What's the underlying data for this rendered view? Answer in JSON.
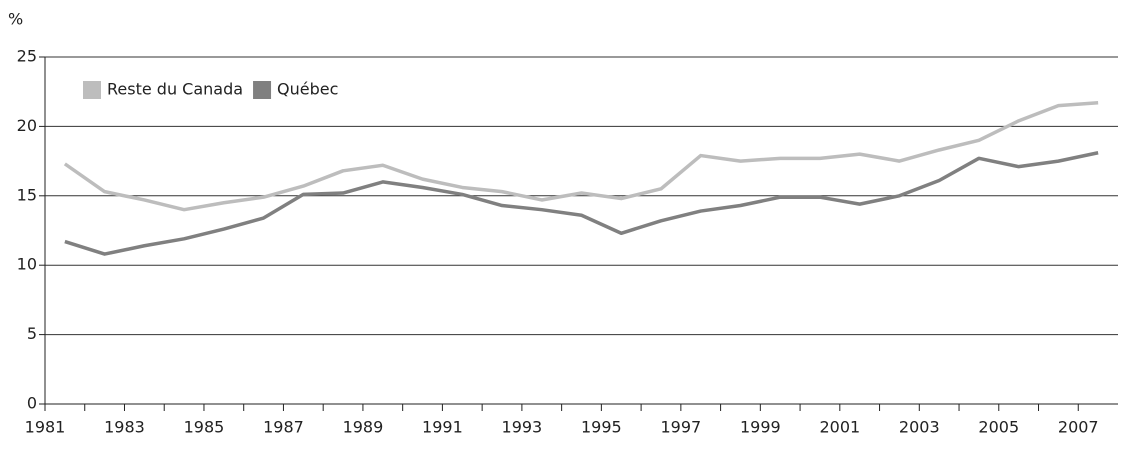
{
  "chart_data": {
    "type": "line",
    "y_label": "%",
    "categories": [
      "1981",
      null,
      "1983",
      null,
      "1985",
      null,
      "1987",
      null,
      "1989",
      null,
      "1991",
      null,
      "1993",
      null,
      "1995",
      null,
      "1997",
      null,
      "1999",
      null,
      "2001",
      null,
      "2003",
      null,
      "2005",
      null,
      "2007"
    ],
    "series": [
      {
        "name": "Reste du Canada",
        "color": "#bdbdbd",
        "values": [
          17.3,
          15.3,
          14.7,
          14.0,
          14.5,
          14.9,
          15.7,
          16.8,
          17.2,
          16.2,
          15.6,
          15.3,
          14.7,
          15.2,
          14.8,
          15.5,
          17.9,
          17.5,
          17.7,
          17.7,
          18.0,
          17.5,
          18.3,
          19.0,
          20.4,
          21.5,
          21.7
        ]
      },
      {
        "name": "Québec",
        "color": "#808080",
        "values": [
          11.7,
          10.8,
          11.4,
          11.9,
          12.6,
          13.4,
          15.1,
          15.2,
          16.0,
          15.6,
          15.1,
          14.3,
          14.0,
          13.6,
          12.3,
          13.2,
          13.9,
          14.3,
          14.9,
          14.9,
          14.4,
          15.0,
          16.1,
          17.7,
          17.1,
          17.5,
          18.1
        ]
      }
    ],
    "ylim": [
      0,
      25
    ],
    "yticks": [
      0,
      5,
      10,
      15,
      20,
      25
    ],
    "grid": true,
    "legend": "upper left"
  }
}
